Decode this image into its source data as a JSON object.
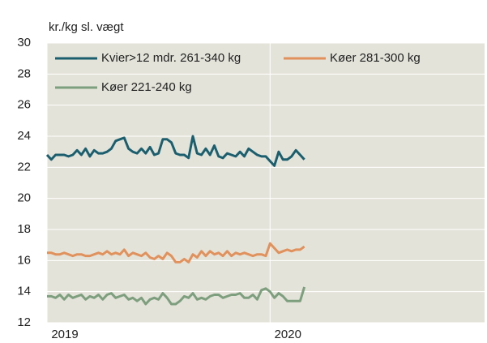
{
  "chart_data": {
    "type": "line",
    "ylabel": "kr./kg sl. vægt",
    "x": [
      0,
      1,
      2,
      3,
      4,
      5,
      6,
      7,
      8,
      9,
      10,
      11,
      12,
      13,
      14,
      15,
      16,
      17,
      18,
      19,
      20,
      21,
      22,
      23,
      24,
      25,
      26,
      27,
      28,
      29,
      30,
      31,
      32,
      33,
      34,
      35,
      36,
      37,
      38,
      39,
      40,
      41,
      42,
      43,
      44,
      45,
      46,
      47,
      48,
      49,
      50,
      51,
      52,
      53,
      54,
      55,
      56,
      57,
      58,
      59,
      60
    ],
    "xlim": [
      0,
      102
    ],
    "xticks": [
      {
        "value": 0,
        "label": "2019"
      },
      {
        "value": 52,
        "label": "2020"
      }
    ],
    "ylim": [
      12,
      30
    ],
    "yticks": [
      12,
      14,
      16,
      18,
      20,
      22,
      24,
      26,
      28,
      30
    ],
    "grid": true,
    "series": [
      {
        "name": "Kvier>12 mdr. 261-340 kg",
        "color": "#1b5f6f",
        "values": [
          22.8,
          22.5,
          22.8,
          22.8,
          22.8,
          22.7,
          22.8,
          23.1,
          22.8,
          23.2,
          22.7,
          23.1,
          22.9,
          22.9,
          23.0,
          23.2,
          23.7,
          23.8,
          23.9,
          23.2,
          23.0,
          22.9,
          23.2,
          22.9,
          23.3,
          22.8,
          22.9,
          23.8,
          23.8,
          23.6,
          22.9,
          22.8,
          22.8,
          22.6,
          24.0,
          22.9,
          22.8,
          23.2,
          22.8,
          23.4,
          22.7,
          22.6,
          22.9,
          22.8,
          22.7,
          23.0,
          22.7,
          23.2,
          23.0,
          22.8,
          22.7,
          22.7,
          22.4,
          22.1,
          23.0,
          22.5,
          22.5,
          22.7,
          23.1,
          22.8,
          22.5
        ]
      },
      {
        "name": "Køer 281-300 kg",
        "color": "#e0915c",
        "values": [
          16.5,
          16.5,
          16.4,
          16.4,
          16.5,
          16.4,
          16.3,
          16.4,
          16.4,
          16.3,
          16.3,
          16.4,
          16.5,
          16.4,
          16.6,
          16.4,
          16.5,
          16.4,
          16.7,
          16.3,
          16.5,
          16.4,
          16.3,
          16.5,
          16.2,
          16.1,
          16.3,
          16.1,
          16.5,
          16.3,
          15.9,
          15.9,
          16.1,
          15.9,
          16.4,
          16.2,
          16.6,
          16.3,
          16.6,
          16.4,
          16.5,
          16.3,
          16.6,
          16.3,
          16.5,
          16.4,
          16.5,
          16.4,
          16.3,
          16.4,
          16.4,
          16.3,
          17.1,
          16.8,
          16.5,
          16.6,
          16.7,
          16.6,
          16.7,
          16.7,
          16.9
        ]
      },
      {
        "name": "Køer 221-240 kg",
        "color": "#7d9f7e",
        "values": [
          13.7,
          13.7,
          13.6,
          13.8,
          13.5,
          13.8,
          13.6,
          13.7,
          13.8,
          13.5,
          13.7,
          13.6,
          13.8,
          13.5,
          13.8,
          13.9,
          13.6,
          13.7,
          13.8,
          13.5,
          13.6,
          13.4,
          13.6,
          13.2,
          13.5,
          13.6,
          13.5,
          13.9,
          13.6,
          13.2,
          13.2,
          13.4,
          13.7,
          13.6,
          13.9,
          13.5,
          13.6,
          13.5,
          13.7,
          13.8,
          13.8,
          13.6,
          13.7,
          13.8,
          13.8,
          13.9,
          13.6,
          13.6,
          13.8,
          13.5,
          14.1,
          14.2,
          14.0,
          13.6,
          13.9,
          13.7,
          13.4,
          13.4,
          13.4,
          13.4,
          14.3
        ]
      }
    ]
  }
}
